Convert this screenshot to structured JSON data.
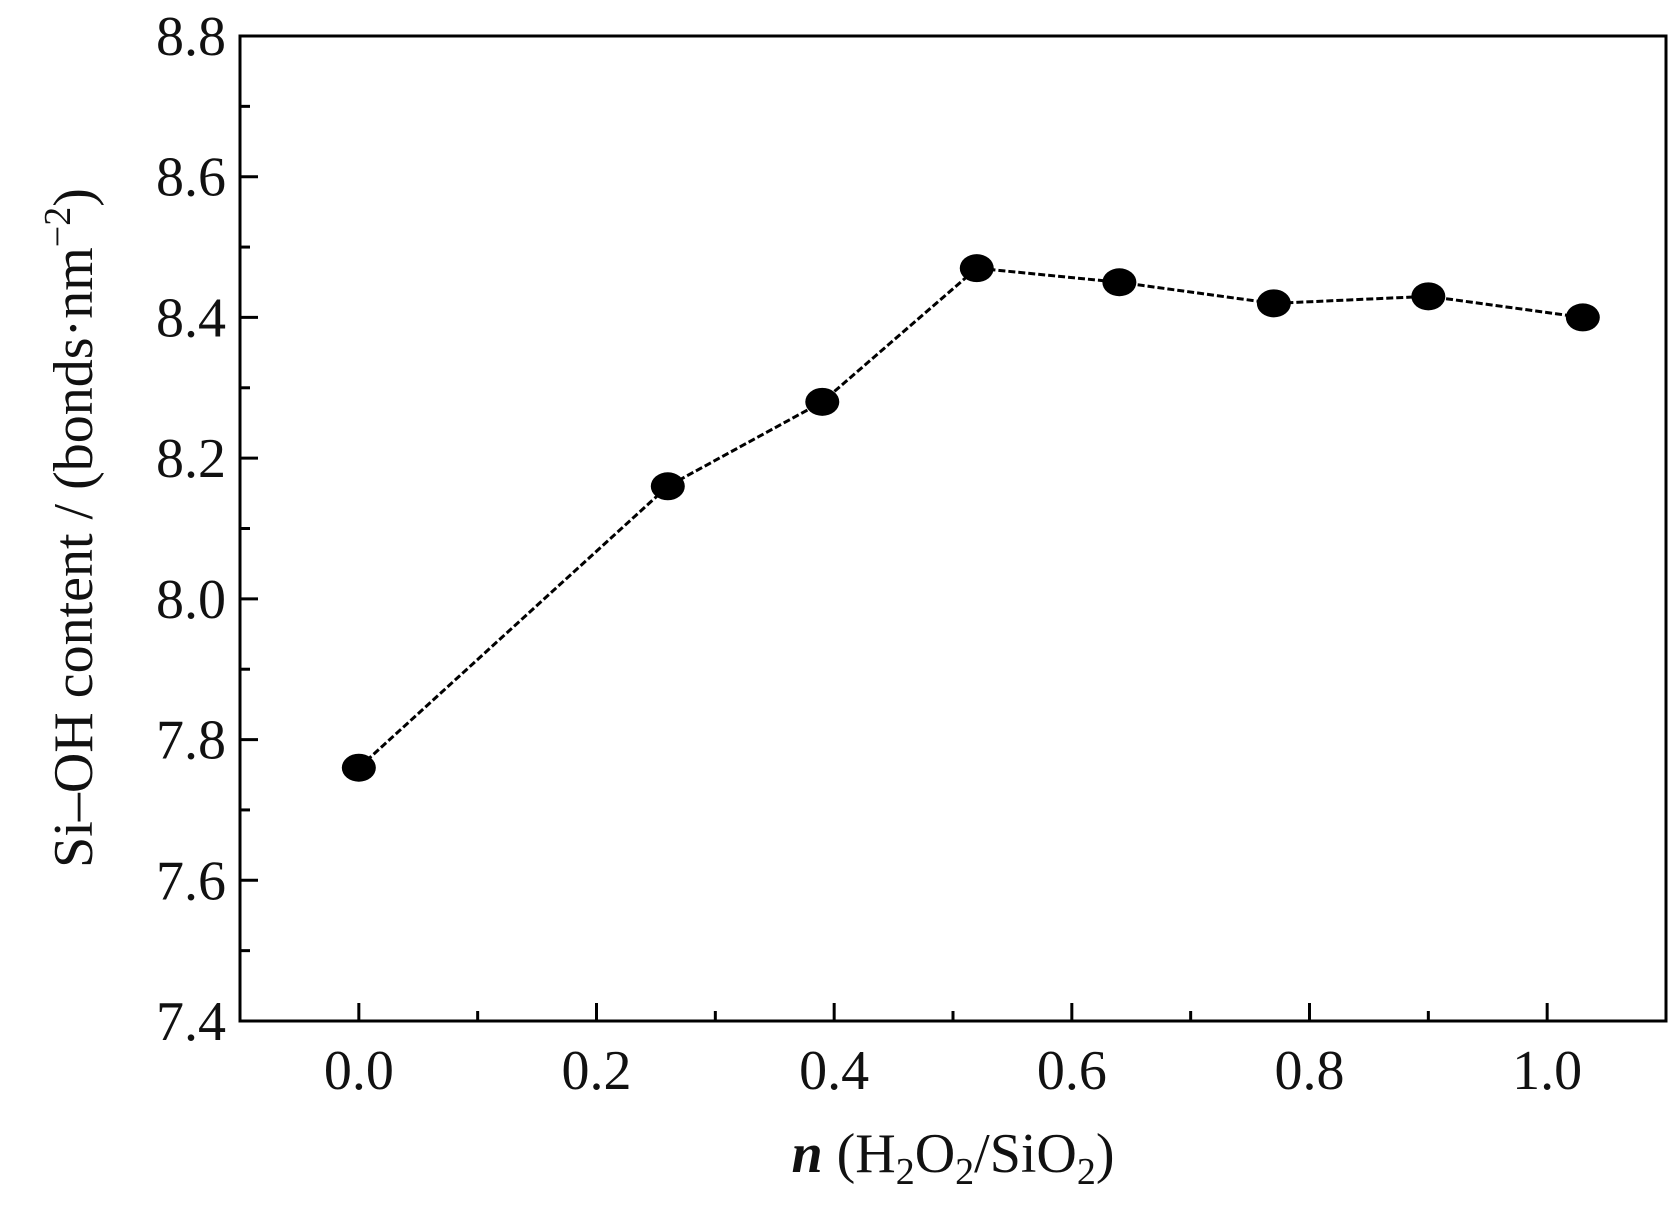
{
  "chart_data": {
    "type": "line",
    "title": "",
    "xlabel": {
      "italic_symbol": "n",
      "parts": [
        " (H",
        "2",
        "O",
        "2",
        "/SiO",
        "2",
        ")"
      ]
    },
    "ylabel": {
      "main": "Si–OH content / (bonds·nm",
      "sup": "−2",
      "close": ")"
    },
    "xlim": [
      -0.1,
      1.1
    ],
    "ylim": [
      7.4,
      8.8
    ],
    "xticks": [
      "0.0",
      "0.2",
      "0.4",
      "0.6",
      "0.8",
      "1.0"
    ],
    "yticks": [
      "7.4",
      "7.6",
      "7.8",
      "8.0",
      "8.2",
      "8.4",
      "8.6",
      "8.8"
    ],
    "grid": false,
    "series": [
      {
        "line_style": "dashed",
        "marker": "filled-circle",
        "color": "#000000",
        "x": [
          0.0,
          0.26,
          0.39,
          0.52,
          0.64,
          0.77,
          0.9,
          1.03
        ],
        "y": [
          7.76,
          8.16,
          8.28,
          8.47,
          8.45,
          8.42,
          8.43,
          8.4
        ]
      }
    ]
  }
}
